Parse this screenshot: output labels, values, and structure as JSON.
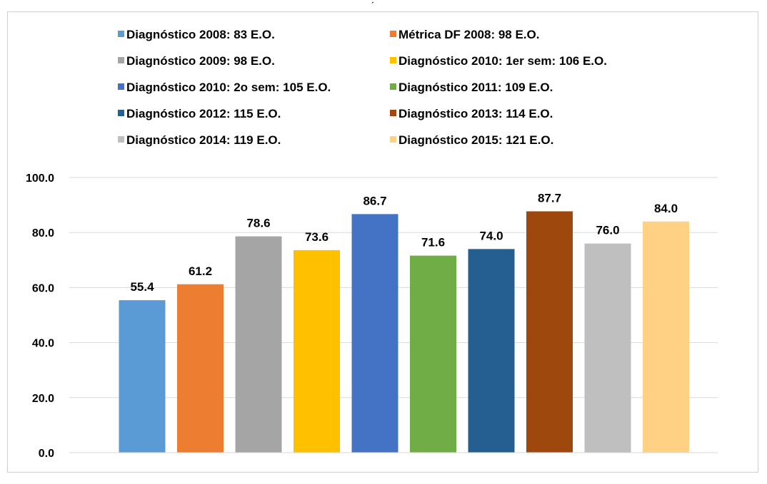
{
  "top_mark": "´",
  "chart_data": {
    "type": "bar",
    "title": "",
    "xlabel": "",
    "ylabel": "",
    "ylim": [
      0,
      100
    ],
    "yticks": [
      "0.0",
      "20.0",
      "40.0",
      "60.0",
      "80.0",
      "100.0"
    ],
    "ytick_values": [
      0,
      20,
      40,
      60,
      80,
      100
    ],
    "grid": true,
    "legend_position": "top",
    "series": [
      {
        "name": "Diagnóstico 2008: 83 E.O.",
        "value": 55.4,
        "label": "55.4",
        "color": "#5B9BD5"
      },
      {
        "name": "Métrica DF 2008: 98 E.O.",
        "value": 61.2,
        "label": "61.2",
        "color": "#ED7D31"
      },
      {
        "name": "Diagnóstico 2009: 98 E.O.",
        "value": 78.6,
        "label": "78.6",
        "color": "#A5A5A5"
      },
      {
        "name": "Diagnóstico 2010: 1er sem: 106 E.O.",
        "value": 73.6,
        "label": "73.6",
        "color": "#FFC000"
      },
      {
        "name": "Diagnóstico 2010: 2o sem: 105 E.O.",
        "value": 86.7,
        "label": "86.7",
        "color": "#4472C4"
      },
      {
        "name": "Diagnóstico 2011: 109 E.O.",
        "value": 71.6,
        "label": "71.6",
        "color": "#70AD47"
      },
      {
        "name": "Diagnóstico 2012: 115 E.O.",
        "value": 74.0,
        "label": "74.0",
        "color": "#255E91"
      },
      {
        "name": "Diagnóstico 2013: 114 E.O.",
        "value": 87.7,
        "label": "87.7",
        "color": "#9E480E"
      },
      {
        "name": "Diagnóstico 2014: 119 E.O.",
        "value": 76.0,
        "label": "76.0",
        "color": "#BFBFBF"
      },
      {
        "name": "Diagnóstico 2015: 121 E.O.",
        "value": 84.0,
        "label": "84.0",
        "color": "#FFD185"
      }
    ]
  }
}
